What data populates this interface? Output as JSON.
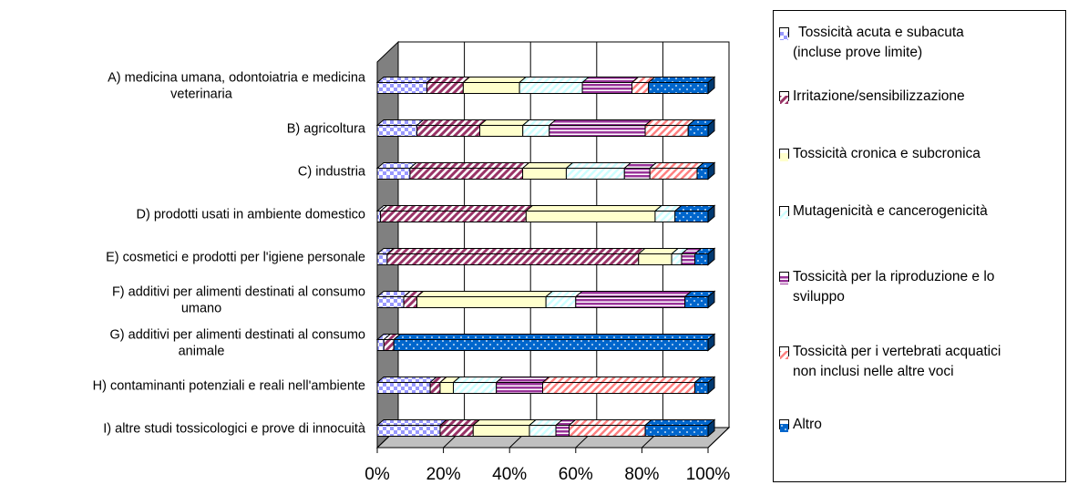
{
  "chart_data": {
    "type": "bar",
    "orientation": "horizontal",
    "stacked": "percent",
    "title": "",
    "xlabel": "",
    "ylabel": "",
    "xlim": [
      0,
      100
    ],
    "x_ticks": [
      "0%",
      "20%",
      "40%",
      "60%",
      "80%",
      "100%"
    ],
    "grid": true,
    "legend_position": "right",
    "categories": [
      "A) medicina umana, odontoiatria e medicina veterinaria",
      "B) agricoltura",
      "C) industria",
      "D) prodotti usati in ambiente domestico",
      "E) cosmetici e prodotti per l'igiene personale",
      "F) additivi per alimenti destinati al consumo umano",
      "G) additivi per alimenti destinati al consumo animale",
      "H) contaminanti potenziali e reali nell'ambiente",
      "I)  altre studi tossicologici e prove di innocuità"
    ],
    "category_lines": [
      [
        "A) medicina umana, odontoiatria e medicina",
        "veterinaria"
      ],
      [
        "B) agricoltura"
      ],
      [
        "C) industria"
      ],
      [
        "D) prodotti usati in ambiente domestico"
      ],
      [
        "E) cosmetici e prodotti per l'igiene personale"
      ],
      [
        "F) additivi per alimenti destinati al consumo",
        "umano"
      ],
      [
        "G) additivi per alimenti destinati al consumo",
        "animale"
      ],
      [
        "H) contaminanti potenziali e reali nell'ambiente"
      ],
      [
        "I)  altre studi tossicologici e prove di innocuità"
      ]
    ],
    "series": [
      {
        "name": "Tossicità acuta e subacuta (incluse prove limite)",
        "name_lines": [
          "Tossicità acuta e subacuta",
          "(incluse prove limite)"
        ],
        "color": "#9999ff",
        "pattern": "checker",
        "values": [
          15,
          12,
          9,
          1,
          3,
          8,
          2,
          16,
          19
        ]
      },
      {
        "name": "Irritazione/sensibilizzazione",
        "name_lines": [
          "Irritazione/sensibilizzazione"
        ],
        "color": "#993366",
        "pattern": "diagonal",
        "values": [
          11,
          19,
          31,
          44,
          76,
          4,
          3,
          3,
          10
        ]
      },
      {
        "name": "Tossicità cronica e subcronica",
        "name_lines": [
          "Tossicità cronica e subcronica"
        ],
        "color": "#ffffcc",
        "pattern": "solid",
        "values": [
          17,
          13,
          12,
          39,
          10,
          39,
          0,
          4,
          17
        ]
      },
      {
        "name": "Mutagenicità e cancerogenicità",
        "name_lines": [
          "Mutagenicità e cancerogenicità"
        ],
        "color": "#ccffff",
        "pattern": "diagonal-light",
        "values": [
          19,
          8,
          16,
          6,
          3,
          9,
          0,
          13,
          8
        ]
      },
      {
        "name": "Tossicità per la riproduzione e lo sviluppo",
        "name_lines": [
          "Tossicità per la riproduzione e lo",
          "sviluppo"
        ],
        "color": "#993399",
        "pattern": "horizontal",
        "values": [
          15,
          29,
          7,
          0,
          4,
          33,
          0,
          14,
          4
        ]
      },
      {
        "name": "Tossicità per i vertebrati acquatici non inclusi nelle altre voci",
        "name_lines": [
          "Tossicità per i vertebrati acquatici",
          "non inclusi nelle altre voci"
        ],
        "color": "#ff8080",
        "pattern": "diagonal-light",
        "values": [
          5,
          13,
          13,
          0,
          0,
          0,
          0,
          46,
          23
        ]
      },
      {
        "name": "Altro",
        "name_lines": [
          "Altro"
        ],
        "color": "#0066cc",
        "pattern": "dotted",
        "values": [
          18,
          6,
          3,
          10,
          4,
          7,
          95,
          4,
          19
        ]
      }
    ]
  }
}
